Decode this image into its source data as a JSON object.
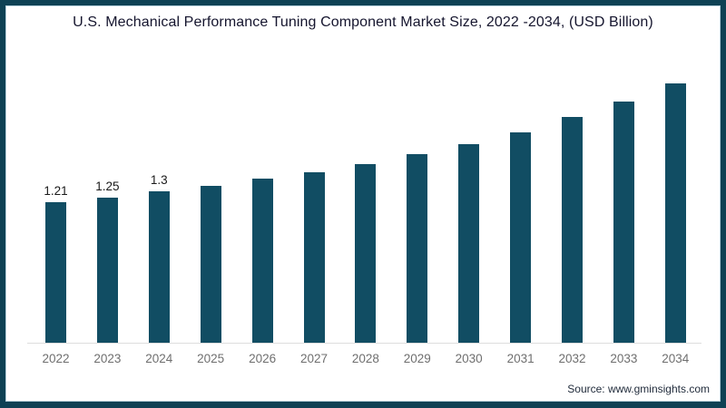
{
  "page": {
    "title": "U.S. Mechanical Performance Tuning Component Market Size, 2022 -2034, (USD Billion)",
    "source": "Source: www.gminsights.com"
  },
  "colors": {
    "bar": "#114d63",
    "border": "#0e4154",
    "axis": "#dddddd",
    "tick_label": "#6f6f6f",
    "value_label": "#1a1a1a",
    "title": "#15152e",
    "source": "#1f2a3a"
  },
  "chart_data": {
    "type": "bar",
    "title": "U.S. Mechanical Performance Tuning Component Market Size, 2022 -2034, (USD Billion)",
    "unit": "USD Billion",
    "categories": [
      "2022",
      "2023",
      "2024",
      "2025",
      "2026",
      "2027",
      "2028",
      "2029",
      "2030",
      "2031",
      "2032",
      "2033",
      "2034"
    ],
    "values": [
      1.21,
      1.25,
      1.3,
      1.35,
      1.41,
      1.47,
      1.54,
      1.62,
      1.71,
      1.81,
      1.94,
      2.08,
      2.23
    ],
    "data_labels": [
      "1.21",
      "1.25",
      "1.3",
      "",
      "",
      "",
      "",
      "",
      "",
      "",
      "",
      "",
      ""
    ],
    "xlabel": "",
    "ylabel": "",
    "ylim": [
      0,
      2.4
    ],
    "grid": false,
    "legend": false,
    "yaxis_visible": false,
    "source": "Source: www.gminsights.com"
  }
}
